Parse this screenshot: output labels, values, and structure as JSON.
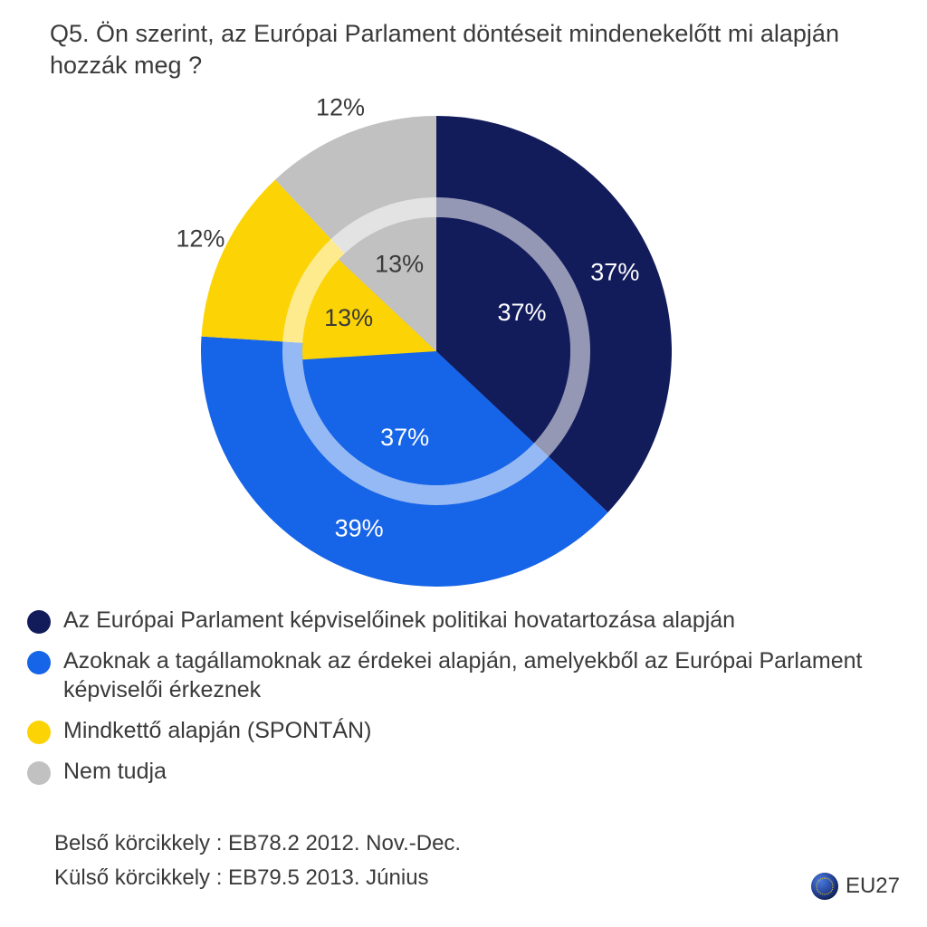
{
  "title": "Q5. Ön szerint, az Európai Parlament döntéseit mindenekelőtt mi alapján hozzák meg ?",
  "chart": {
    "type": "donut-nested-pie",
    "background_color": "#ffffff",
    "title_fontsize": 27,
    "title_color": "#3a3a3a",
    "label_fontsize": 27,
    "outer": {
      "radius": 260,
      "slices": [
        {
          "key": "political",
          "value": 37,
          "label": "37%",
          "color": "#131c5b",
          "label_color": "#ffffff"
        },
        {
          "key": "memberstate",
          "value": 39,
          "label": "39%",
          "color": "#1664e7",
          "label_color": "#ffffff"
        },
        {
          "key": "both",
          "value": 12,
          "label": "12%",
          "color": "#fcd305",
          "label_color": "#3a3a3a"
        },
        {
          "key": "dontknow",
          "value": 12,
          "label": "12%",
          "color": "#c1c1c1",
          "label_color": "#3a3a3a"
        }
      ]
    },
    "gap_ring": {
      "outer_radius": 170,
      "inner_radius": 148,
      "color": "#ffffff",
      "opacity": 0.55
    },
    "inner": {
      "radius": 148,
      "slices": [
        {
          "key": "political",
          "value": 37,
          "label": "37%",
          "color": "#131c5b",
          "label_color": "#ffffff"
        },
        {
          "key": "memberstate",
          "value": 37,
          "label": "37%",
          "color": "#1664e7",
          "label_color": "#ffffff"
        },
        {
          "key": "both",
          "value": 13,
          "label": "13%",
          "color": "#fcd305",
          "label_color": "#3a3a3a"
        },
        {
          "key": "dontknow",
          "value": 13,
          "label": "13%",
          "color": "#c1c1c1",
          "label_color": "#3a3a3a"
        }
      ]
    },
    "start_angle_deg": 0
  },
  "legend": {
    "items": [
      {
        "color": "#131c5b",
        "text": "Az Európai Parlament képviselőinek politikai hovatartozása alapján"
      },
      {
        "color": "#1664e7",
        "text": "Azoknak a tagállamoknak az érdekei alapján, amelyekből az Európai Parlament képviselői érkeznek"
      },
      {
        "color": "#fcd305",
        "text": "Mindkettő alapján (SPONTÁN)"
      },
      {
        "color": "#c1c1c1",
        "text": "Nem tudja"
      }
    ],
    "fontsize": 25,
    "text_color": "#3a3a3a"
  },
  "notes": {
    "inner_label": "Belső körcikkely :  EB78.2 2012. Nov.-Dec.",
    "outer_label": "Külső körcikkely :  EB79.5 2013. Június",
    "fontsize": 24
  },
  "badge": {
    "text": "EU27"
  }
}
